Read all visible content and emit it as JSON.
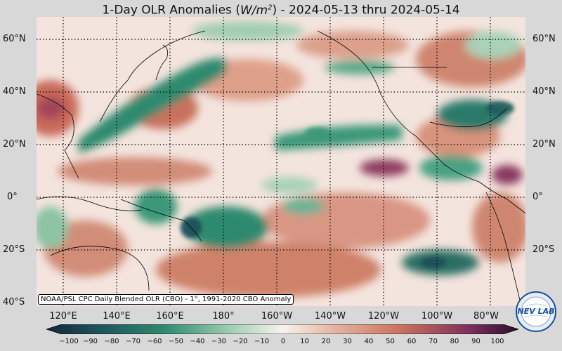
{
  "title": {
    "prefix": "1-Day OLR Anomalies (",
    "unit_base": "W/m",
    "unit_exp": "2",
    "suffix": ") - 2024-05-13 thru 2024-05-14"
  },
  "lat_labels_left": [
    "60°N",
    "40°N",
    "20°N",
    "0°",
    "20°S",
    "40°S"
  ],
  "lat_labels_right": [
    "60°N",
    "40°N",
    "20°N",
    "0°",
    "20°S"
  ],
  "lon_labels": [
    "120°E",
    "140°E",
    "160°E",
    "180°",
    "160°W",
    "140°W",
    "120°W",
    "100°W",
    "80°W"
  ],
  "credit": "NOAA/PSL CPC Daily Blended OLR (CBO) - 1°, 1991-2020 CBO Anomaly",
  "colorbar_ticks": [
    "−100",
    "−90",
    "−80",
    "−70",
    "−60",
    "−50",
    "−40",
    "−30",
    "−20",
    "−10",
    "0",
    "10",
    "20",
    "30",
    "40",
    "50",
    "60",
    "70",
    "80",
    "90",
    "100"
  ],
  "colors": {
    "strong_negative": "#1f4e5a",
    "negative": "#2e8a6e",
    "weak_negative": "#a9d2b8",
    "neutral": "#f7f2ee",
    "weak_positive": "#e7b9a6",
    "positive": "#c9725d",
    "strong_positive": "#7a2e5c"
  },
  "logo_text": "NEV LAB"
}
